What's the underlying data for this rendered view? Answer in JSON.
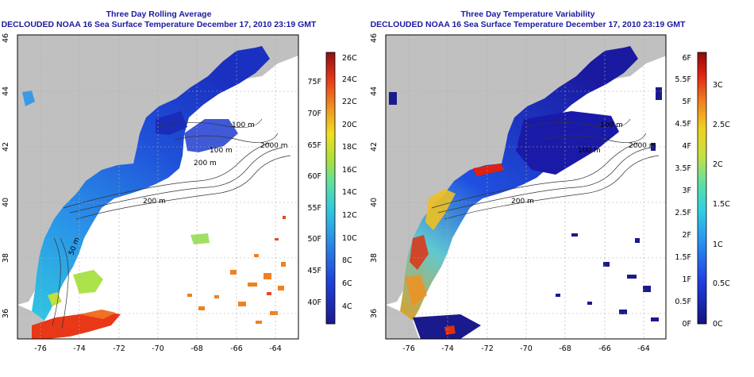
{
  "left_panel": {
    "title_line1": "Three Day Rolling Average",
    "title_line2": "DECLOUDED NOAA 16 Sea Surface Temperature December 17, 2010 23:19 GMT",
    "colorbar_f_ticks": [
      "40F",
      "45F",
      "50F",
      "55F",
      "60F",
      "65F",
      "70F",
      "75F"
    ],
    "colorbar_c_ticks": [
      "4C",
      "6C",
      "8C",
      "10C",
      "12C",
      "14C",
      "16C",
      "18C",
      "20C",
      "22C",
      "24C",
      "26C"
    ]
  },
  "right_panel": {
    "title_line1": "Three Day Temperature Variability",
    "title_line2": "DECLOUDED NOAA 16 Sea Surface Temperature December 17, 2010 23:19 GMT",
    "colorbar_f_ticks": [
      "0F",
      "0.5F",
      "1F",
      "1.5F",
      "2F",
      "2.5F",
      "3F",
      "3.5F",
      "4F",
      "4.5F",
      "5F",
      "5.5F",
      "6F"
    ],
    "colorbar_c_ticks": [
      "0C",
      "0.5C",
      "1C",
      "1.5C",
      "2C",
      "2.5C",
      "3C"
    ]
  },
  "map_axes": {
    "lon_ticks": [
      "-76",
      "-74",
      "-72",
      "-70",
      "-68",
      "-66",
      "-64"
    ],
    "lat_ticks": [
      "36",
      "38",
      "40",
      "42",
      "44",
      "46"
    ]
  },
  "depth_contour_labels": [
    "100 m",
    "100 m",
    "200 m",
    "2000 m",
    "200 m",
    "50 m"
  ],
  "colors": {
    "land": "#c0c0c0",
    "ocean_blank": "#ffffff",
    "title": "#1a1aa0",
    "contour": "#333333"
  }
}
